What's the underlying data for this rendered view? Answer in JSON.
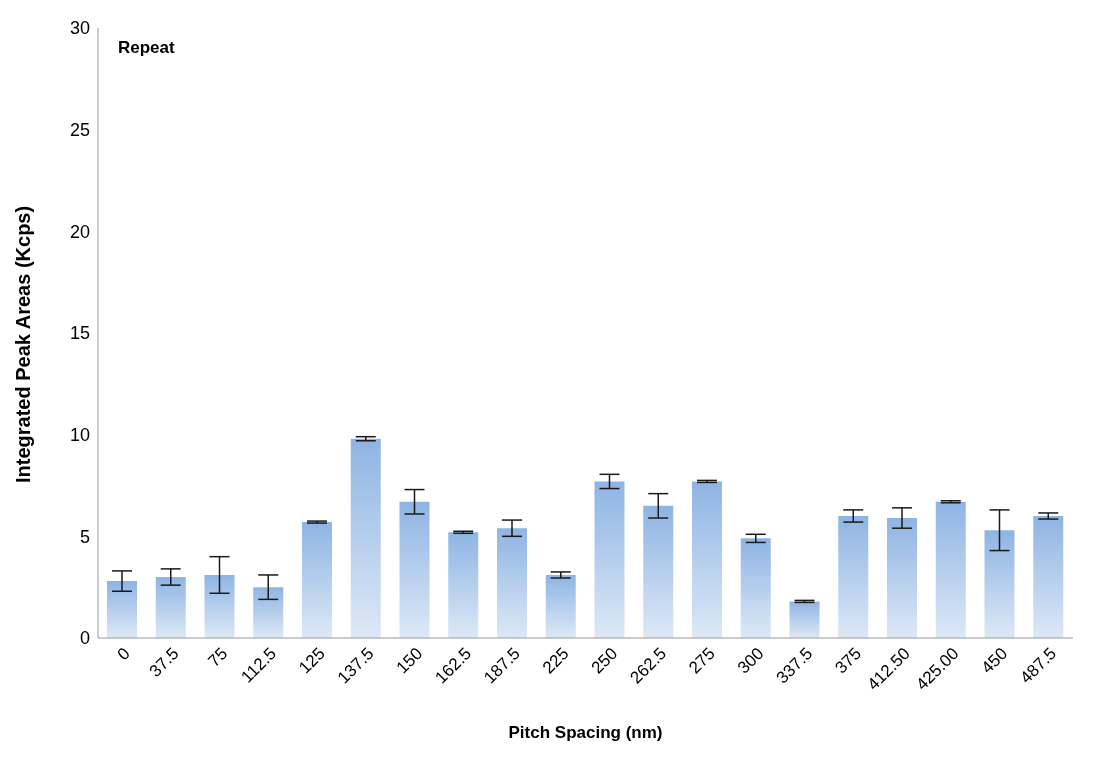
{
  "chart_data": {
    "type": "bar",
    "xlabel": "Pitch Spacing (nm)",
    "ylabel": "Integrated Peak Areas (Kcps)",
    "annotations": [
      "Repeat"
    ],
    "categories": [
      "0",
      "37.5",
      "75",
      "112.5",
      "125",
      "137.5",
      "150",
      "162.5",
      "187.5",
      "225",
      "250",
      "262.5",
      "275",
      "300",
      "337.5",
      "375",
      "412.50",
      "425.00",
      "450",
      "487.5"
    ],
    "values": [
      2.8,
      3.0,
      3.1,
      2.5,
      5.7,
      9.8,
      6.7,
      5.2,
      5.4,
      3.1,
      7.7,
      6.5,
      7.7,
      4.9,
      1.8,
      6.0,
      5.9,
      6.7,
      5.3,
      6.0
    ],
    "errors": [
      0.5,
      0.4,
      0.9,
      0.6,
      0.05,
      0.1,
      0.6,
      0.05,
      0.4,
      0.15,
      0.35,
      0.6,
      0.05,
      0.2,
      0.05,
      0.3,
      0.5,
      0.05,
      1.0,
      0.15
    ],
    "color": "#8eb4e3",
    "ylim": [
      0,
      30
    ],
    "yticks": [
      0,
      5,
      10,
      15,
      20,
      25,
      30
    ],
    "grid": false,
    "legend": false
  }
}
